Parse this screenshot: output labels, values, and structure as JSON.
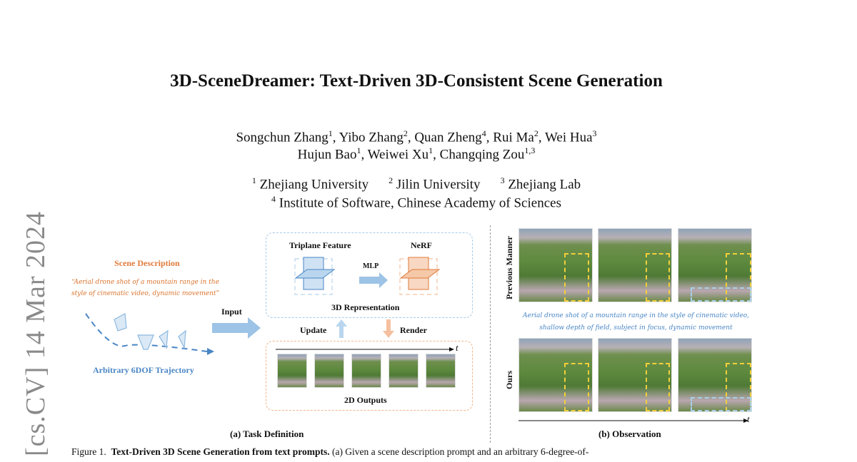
{
  "title": "3D-SceneDreamer: Text-Driven 3D-Consistent Scene Generation",
  "authors_line1": [
    {
      "name": "Songchun Zhang",
      "sup": "1"
    },
    {
      "name": "Yibo Zhang",
      "sup": "2"
    },
    {
      "name": "Quan Zheng",
      "sup": "4"
    },
    {
      "name": "Rui Ma",
      "sup": "2"
    },
    {
      "name": "Wei Hua",
      "sup": "3"
    }
  ],
  "authors_line2": [
    {
      "name": "Hujun Bao",
      "sup": "1"
    },
    {
      "name": "Weiwei Xu",
      "sup": "1"
    },
    {
      "name": "Changqing Zou",
      "sup": "1,3"
    }
  ],
  "affiliations": [
    {
      "sup": "1",
      "name": "Zhejiang University"
    },
    {
      "sup": "2",
      "name": "Jilin University"
    },
    {
      "sup": "3",
      "name": "Zhejiang Lab"
    },
    {
      "sup": "4",
      "name": "Institute of Software, Chinese Academy of Sciences"
    }
  ],
  "arxiv_stamp": "[cs.CV]  14 Mar 2024",
  "figure": {
    "a": {
      "scene_description": "Scene Description",
      "prompt": "“Aerial drone shot of a mountain range in the style of cinematic video, dynamic movement”",
      "trajectory": "Arbitrary 6DOF Trajectory",
      "input": "Input",
      "triplane": "Triplane Feature",
      "nerf": "NeRF",
      "mlp": "MLP",
      "representation": "3D Representation",
      "update": "Update",
      "render": "Render",
      "t": "t",
      "outputs": "2D Outputs",
      "caption": "(a) Task Definition"
    },
    "b": {
      "previous": "Previous Manner",
      "ours": "Ours",
      "prompt": "Aerial drone shot of a mountain range in the style of cinematic video, shallow depth of field, subject in focus, dynamic movement",
      "t": "t",
      "caption": "(b) Observation"
    },
    "colors": {
      "blue": "#4a86c5",
      "orange": "#e07a3a",
      "yellow": "#f2cf3a"
    }
  },
  "caption": {
    "label": "Figure 1.",
    "bold": "Text-Driven 3D Scene Generation from text prompts.",
    "text": "(a) Given a scene description prompt and an arbitrary 6-degree-of-"
  }
}
